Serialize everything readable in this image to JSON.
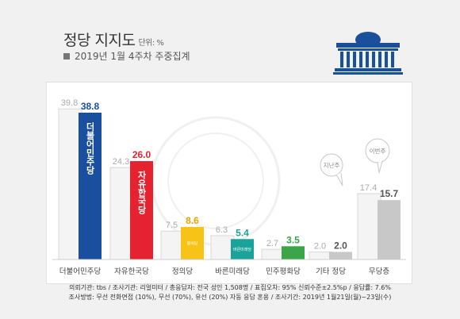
{
  "header": {
    "title": "정당 지지도",
    "unit": "단위: %",
    "subtitle": "2019년 1월 4주차 주중집계"
  },
  "chart_data": {
    "type": "bar",
    "categories": [
      "더불어민주당",
      "자유한국당",
      "정의당",
      "바른미래당",
      "민주평화당",
      "기타 정당",
      "무당층"
    ],
    "series": [
      {
        "name": "지난주",
        "values": [
          39.8,
          24.3,
          7.5,
          6.3,
          2.7,
          2.0,
          17.4
        ],
        "color": "#f4f4f4"
      },
      {
        "name": "이번주",
        "values": [
          38.8,
          26.0,
          8.6,
          5.4,
          3.5,
          2.0,
          15.7
        ],
        "colors": [
          "#1a4fa0",
          "#e5222f",
          "#f6c316",
          "#1aa39a",
          "#3aa648",
          "#c8c8c8",
          "#c8c8c8"
        ]
      }
    ],
    "value_label_colors": [
      "#1a4fa0",
      "#e5222f",
      "#e0a800",
      "#1aa39a",
      "#3aa648",
      "#555555",
      "#555555"
    ],
    "bar_logos": [
      "더불어민주당",
      "자유한국당",
      "정의당",
      "바른미래당",
      "",
      "",
      ""
    ],
    "annotations": [
      "지난주",
      "이번주"
    ],
    "ylim": [
      0,
      42
    ]
  },
  "footer": {
    "line1": "의뢰기관: tbs / 조사기관: 리얼미터 / 총응답자: 전국 성인 1,508명 / 표집오차: 95% 신뢰수준±2.5%p / 응답률: 7.6%",
    "line2": "조사방법: 무선 전화면접 (10%), 무선 (70%), 유선 (20%) 자동 응답 혼용 / 조사기간: 2019년 1월21일(월)~23일(수)"
  }
}
